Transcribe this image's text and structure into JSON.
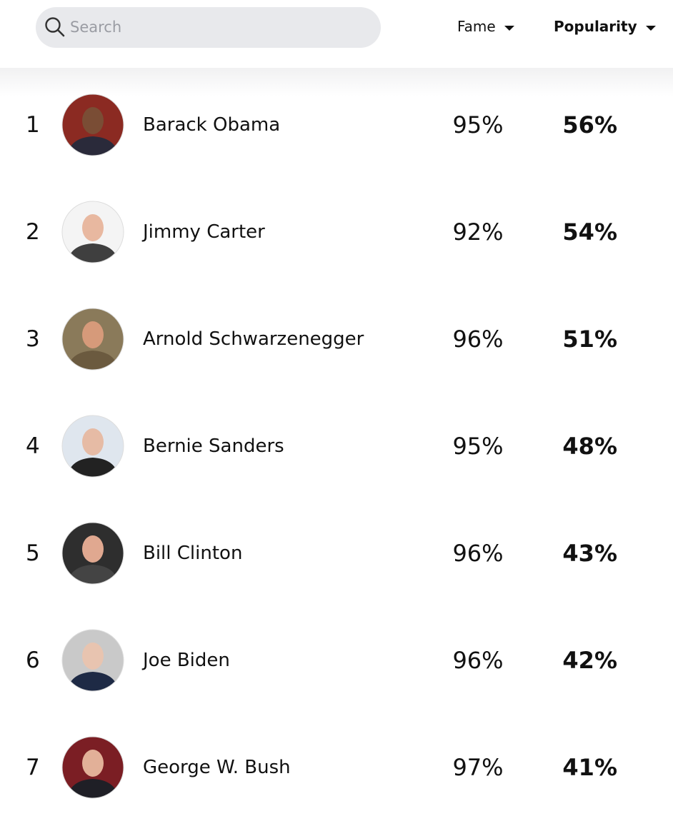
{
  "header": {
    "search_placeholder": "Search",
    "columns": [
      "Fame",
      "Popularity"
    ]
  },
  "table": {
    "rows": [
      [
        "1",
        "Barack Obama",
        "95%",
        "56%"
      ],
      [
        "2",
        "Jimmy Carter",
        "92%",
        "54%"
      ],
      [
        "3",
        "Arnold Schwarzenegger",
        "96%",
        "51%"
      ],
      [
        "4",
        "Bernie Sanders",
        "95%",
        "48%"
      ],
      [
        "5",
        "Bill Clinton",
        "96%",
        "43%"
      ],
      [
        "6",
        "Joe Biden",
        "96%",
        "42%"
      ],
      [
        "7",
        "George W. Bush",
        "97%",
        "41%"
      ]
    ]
  }
}
